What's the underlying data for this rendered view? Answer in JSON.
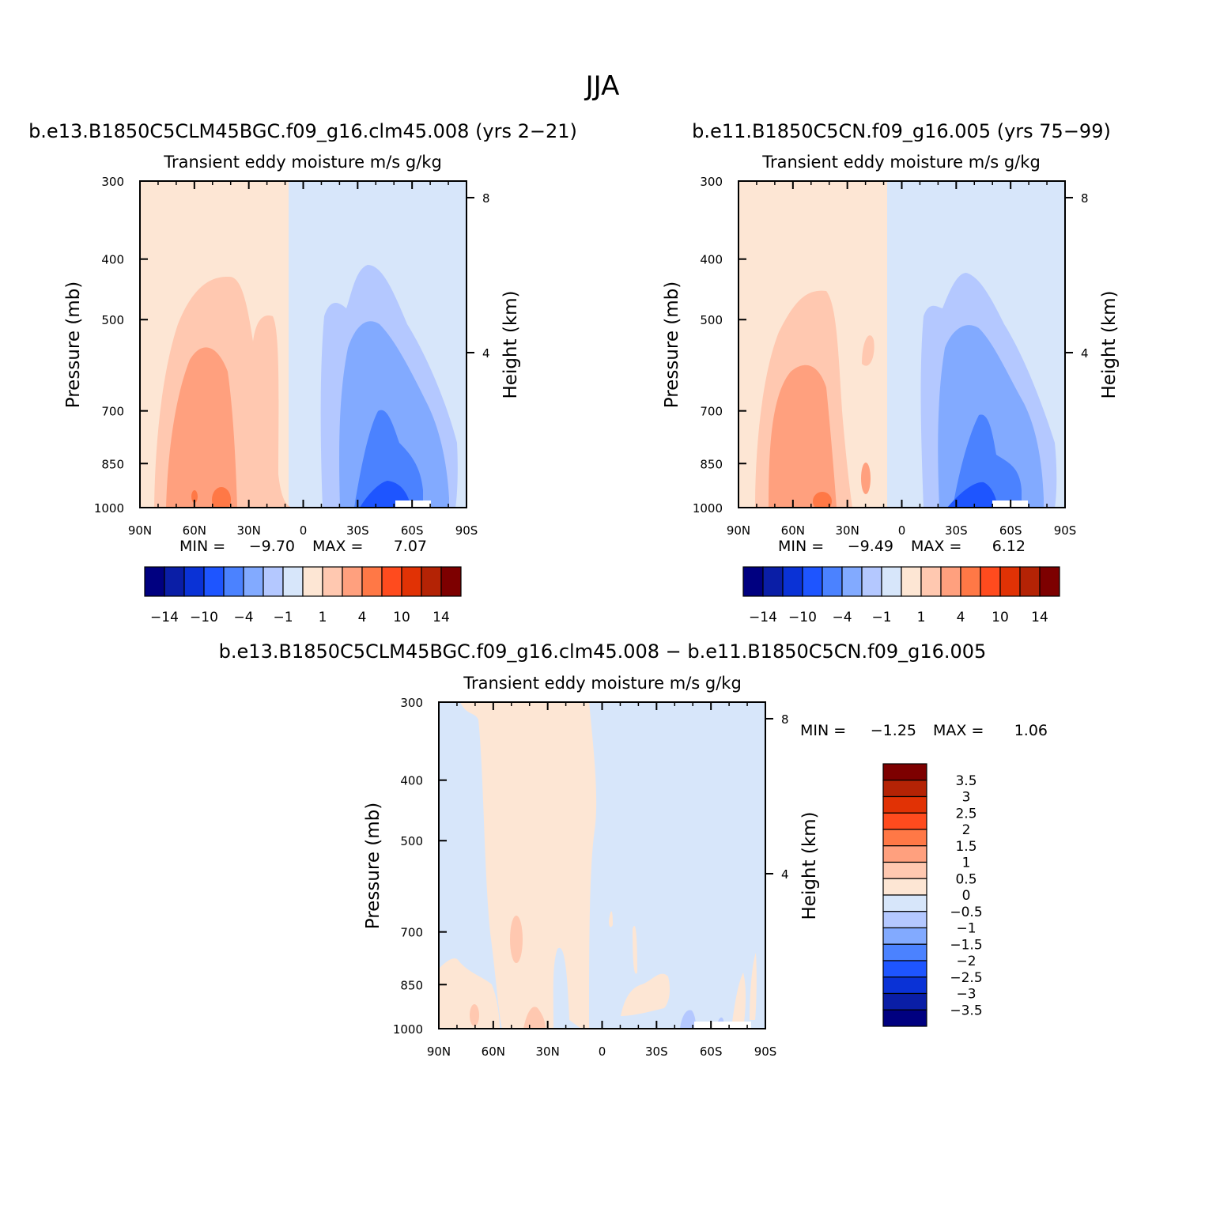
{
  "figure_title": "JJA",
  "chart_data": [
    {
      "type": "heatmap",
      "title": "b.e13.B1850C5CLM45BGC.f09_g16.clm45.008 (yrs 2-21)",
      "subtitle": "Transient eddy moisture m/s g/kg",
      "xlabel": "",
      "ylabel": "Pressure (mb)",
      "y2label": "Height (km)",
      "xticks": [
        "90N",
        "60N",
        "30N",
        "0",
        "30S",
        "60S",
        "90S"
      ],
      "yticks": [
        "300",
        "400",
        "500",
        "700",
        "850",
        "1000"
      ],
      "y2ticks": [
        "8",
        "4"
      ],
      "ylim": [
        1000,
        300
      ],
      "min_label": "MIN =",
      "min_value": "-9.70",
      "max_label": "MAX =",
      "max_value": "7.07",
      "colorbar_orientation": "horizontal",
      "colorbar_ticks": [
        "-14",
        "-10",
        "-4",
        "-1",
        "1",
        "4",
        "10",
        "14"
      ],
      "colorbar_colors": [
        "#000080",
        "#0a1ea6",
        "#0a32d6",
        "#1e55ff",
        "#4b82ff",
        "#82aaff",
        "#b4c8ff",
        "#d7e6fa",
        "#fde6d4",
        "#ffc8b0",
        "#ffa07e",
        "#ff7846",
        "#ff4b1e",
        "#e13205",
        "#b42305",
        "#7d0000"
      ],
      "regions": [
        {
          "name": "NH positive 0-1",
          "range": "0 to 1",
          "lat_from": 90,
          "lat_to": 8,
          "p_from": 1000,
          "p_to": 300
        },
        {
          "name": "SH negative 0 to -1",
          "range": "-1 to 0",
          "lat_from": 8,
          "lat_to": -90,
          "p_from": 1000,
          "p_to": 300
        },
        {
          "name": "NH max",
          "range": "4 to 7.07",
          "lat": 50,
          "p": 950
        },
        {
          "name": "SH min",
          "range": "-9.70",
          "lat": -45,
          "p": 990
        }
      ]
    },
    {
      "type": "heatmap",
      "title": "b.e11.B1850C5CN.f09_g16.005 (yrs 75-99)",
      "subtitle": "Transient eddy moisture m/s g/kg",
      "xlabel": "",
      "ylabel": "Pressure (mb)",
      "y2label": "Height (km)",
      "xticks": [
        "90N",
        "60N",
        "30N",
        "0",
        "30S",
        "60S",
        "90S"
      ],
      "yticks": [
        "300",
        "400",
        "500",
        "700",
        "850",
        "1000"
      ],
      "y2ticks": [
        "8",
        "4"
      ],
      "ylim": [
        1000,
        300
      ],
      "min_label": "MIN =",
      "min_value": "-9.49",
      "max_label": "MAX =",
      "max_value": "6.12",
      "colorbar_orientation": "horizontal",
      "colorbar_ticks": [
        "-14",
        "-10",
        "-4",
        "-1",
        "1",
        "4",
        "10",
        "14"
      ],
      "colorbar_colors": [
        "#000080",
        "#0a1ea6",
        "#0a32d6",
        "#1e55ff",
        "#4b82ff",
        "#82aaff",
        "#b4c8ff",
        "#d7e6fa",
        "#fde6d4",
        "#ffc8b0",
        "#ffa07e",
        "#ff7846",
        "#ff4b1e",
        "#e13205",
        "#b42305",
        "#7d0000"
      ],
      "regions": [
        {
          "name": "NH positive 0-1",
          "range": "0 to 1",
          "lat_from": 90,
          "lat_to": 8,
          "p_from": 1000,
          "p_to": 300
        },
        {
          "name": "SH negative 0 to -1",
          "range": "-1 to 0",
          "lat_from": 8,
          "lat_to": -90,
          "p_from": 1000,
          "p_to": 300
        },
        {
          "name": "NH max",
          "range": "4 to 6.12",
          "lat": 50,
          "p": 960
        },
        {
          "name": "SH min",
          "range": "-9.49",
          "lat": -45,
          "p": 990
        }
      ]
    },
    {
      "type": "heatmap",
      "title": "b.e13.B1850C5CLM45BGC.f09_g16.clm45.008 - b.e11.B1850C5CN.f09_g16.005",
      "subtitle": "Transient eddy moisture m/s g/kg",
      "xlabel": "",
      "ylabel": "Pressure (mb)",
      "y2label": "Height (km)",
      "xticks": [
        "90N",
        "60N",
        "30N",
        "0",
        "30S",
        "60S",
        "90S"
      ],
      "yticks": [
        "300",
        "400",
        "500",
        "700",
        "850",
        "1000"
      ],
      "y2ticks": [
        "8",
        "4"
      ],
      "ylim": [
        1000,
        300
      ],
      "min_label": "MIN =",
      "min_value": "-1.25",
      "max_label": "MAX =",
      "max_value": "1.06",
      "colorbar_orientation": "vertical",
      "colorbar_ticks": [
        "3.5",
        "3",
        "2.5",
        "2",
        "1.5",
        "1",
        "0.5",
        "0",
        "-0.5",
        "-1",
        "-1.5",
        "-2",
        "-2.5",
        "-3",
        "-3.5"
      ],
      "colorbar_colors": [
        "#7d0000",
        "#b42305",
        "#e13205",
        "#ff4b1e",
        "#ff7846",
        "#ffa07e",
        "#ffc8b0",
        "#fde6d4",
        "#d7e6fa",
        "#b4c8ff",
        "#82aaff",
        "#4b82ff",
        "#1e55ff",
        "#0a32d6",
        "#0a1ea6",
        "#000080"
      ],
      "regions": [
        {
          "name": "positive band",
          "range": "0 to 0.5",
          "lat_from": 68,
          "lat_to": 8,
          "p_from": 1000,
          "p_to": 300
        },
        {
          "name": "negative background",
          "range": "-0.5 to 0",
          "lat_from": 90,
          "lat_to": -90,
          "p_from": 1000,
          "p_to": 300
        }
      ]
    }
  ]
}
